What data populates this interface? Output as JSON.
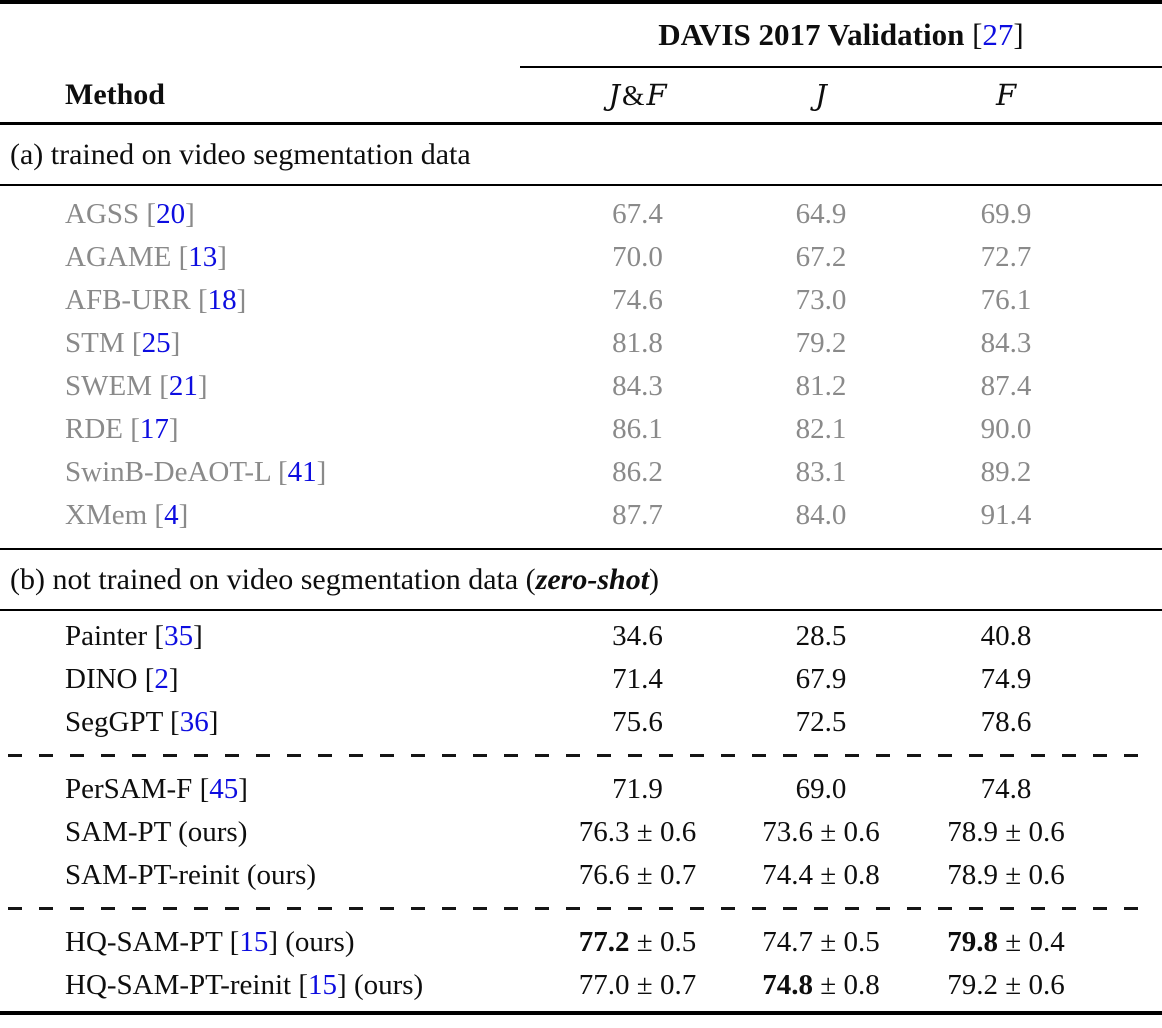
{
  "table": {
    "title": {
      "text": "DAVIS 2017 Validation",
      "cite": "27"
    },
    "columns": {
      "method": "Method",
      "metrics": [
        "J&F",
        "J",
        "F"
      ]
    },
    "colors": {
      "citation_blue": "#0d0de0",
      "muted_gray": "#8a8a8a",
      "text_black": "#0e0e0e"
    },
    "sections": [
      {
        "label_prefix": "(a) trained on video segmentation data",
        "label_emph": "",
        "label_suffix": "",
        "muted": true,
        "groups": [
          {
            "rows": [
              {
                "method": "AGSS",
                "cite": "20",
                "suffix": "",
                "cells": [
                  {
                    "v": "67.4"
                  },
                  {
                    "v": "64.9"
                  },
                  {
                    "v": "69.9"
                  }
                ]
              },
              {
                "method": "AGAME",
                "cite": "13",
                "suffix": "",
                "cells": [
                  {
                    "v": "70.0"
                  },
                  {
                    "v": "67.2"
                  },
                  {
                    "v": "72.7"
                  }
                ]
              },
              {
                "method": "AFB-URR",
                "cite": "18",
                "suffix": "",
                "cells": [
                  {
                    "v": "74.6"
                  },
                  {
                    "v": "73.0"
                  },
                  {
                    "v": "76.1"
                  }
                ]
              },
              {
                "method": "STM",
                "cite": "25",
                "suffix": "",
                "cells": [
                  {
                    "v": "81.8"
                  },
                  {
                    "v": "79.2"
                  },
                  {
                    "v": "84.3"
                  }
                ]
              },
              {
                "method": "SWEM",
                "cite": "21",
                "suffix": "",
                "cells": [
                  {
                    "v": "84.3"
                  },
                  {
                    "v": "81.2"
                  },
                  {
                    "v": "87.4"
                  }
                ]
              },
              {
                "method": "RDE",
                "cite": "17",
                "suffix": "",
                "cells": [
                  {
                    "v": "86.1"
                  },
                  {
                    "v": "82.1"
                  },
                  {
                    "v": "90.0"
                  }
                ]
              },
              {
                "method": "SwinB-DeAOT-L",
                "cite": "41",
                "suffix": "",
                "cells": [
                  {
                    "v": "86.2"
                  },
                  {
                    "v": "83.1"
                  },
                  {
                    "v": "89.2"
                  }
                ]
              },
              {
                "method": "XMem",
                "cite": "4",
                "suffix": "",
                "cells": [
                  {
                    "v": "87.7"
                  },
                  {
                    "v": "84.0"
                  },
                  {
                    "v": "91.4"
                  }
                ]
              }
            ]
          }
        ]
      },
      {
        "label_prefix": "(b) not trained on video segmentation data (",
        "label_emph": "zero-shot",
        "label_suffix": ")",
        "muted": false,
        "groups": [
          {
            "rows": [
              {
                "method": "Painter",
                "cite": "35",
                "suffix": "",
                "cells": [
                  {
                    "v": "34.6"
                  },
                  {
                    "v": "28.5"
                  },
                  {
                    "v": "40.8"
                  }
                ]
              },
              {
                "method": "DINO",
                "cite": "2",
                "suffix": "",
                "cells": [
                  {
                    "v": "71.4"
                  },
                  {
                    "v": "67.9"
                  },
                  {
                    "v": "74.9"
                  }
                ]
              },
              {
                "method": "SegGPT",
                "cite": "36",
                "suffix": "",
                "cells": [
                  {
                    "v": "75.6"
                  },
                  {
                    "v": "72.5"
                  },
                  {
                    "v": "78.6"
                  }
                ]
              }
            ]
          },
          {
            "rows": [
              {
                "method": "PerSAM-F",
                "cite": "45",
                "suffix": "",
                "cells": [
                  {
                    "v": "71.9"
                  },
                  {
                    "v": "69.0"
                  },
                  {
                    "v": "74.8"
                  }
                ]
              },
              {
                "method": "SAM-PT",
                "cite": "",
                "suffix": "(ours)",
                "cells": [
                  {
                    "v": "76.3",
                    "pm": "0.6"
                  },
                  {
                    "v": "73.6",
                    "pm": "0.6"
                  },
                  {
                    "v": "78.9",
                    "pm": "0.6"
                  }
                ]
              },
              {
                "method": "SAM-PT-reinit",
                "cite": "",
                "suffix": "(ours)",
                "cells": [
                  {
                    "v": "76.6",
                    "pm": "0.7"
                  },
                  {
                    "v": "74.4",
                    "pm": "0.8"
                  },
                  {
                    "v": "78.9",
                    "pm": "0.6"
                  }
                ]
              }
            ]
          },
          {
            "rows": [
              {
                "method": "HQ-SAM-PT",
                "cite": "15",
                "suffix": "(ours)",
                "cells": [
                  {
                    "v": "77.2",
                    "pm": "0.5",
                    "bold": true
                  },
                  {
                    "v": "74.7",
                    "pm": "0.5"
                  },
                  {
                    "v": "79.8",
                    "pm": "0.4",
                    "bold": true
                  }
                ]
              },
              {
                "method": "HQ-SAM-PT-reinit",
                "cite": "15",
                "suffix": "(ours)",
                "cells": [
                  {
                    "v": "77.0",
                    "pm": "0.7"
                  },
                  {
                    "v": "74.8",
                    "pm": "0.8",
                    "bold": true
                  },
                  {
                    "v": "79.2",
                    "pm": "0.6"
                  }
                ]
              }
            ]
          }
        ]
      }
    ]
  }
}
